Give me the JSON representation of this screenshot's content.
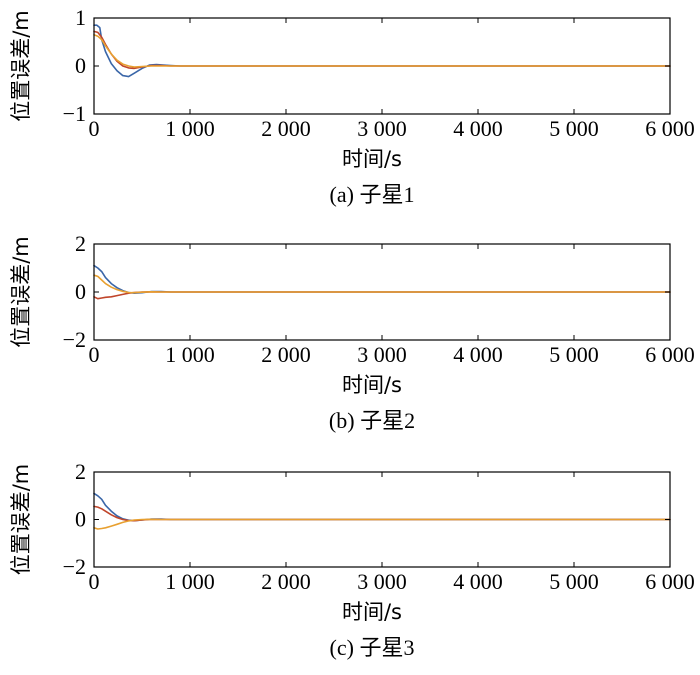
{
  "chart_data": [
    {
      "type": "line",
      "caption": "(a) 子星1",
      "xlabel": "时间/s",
      "ylabel": "位置误差/m",
      "xlim": [
        0,
        6000
      ],
      "ylim": [
        -1,
        1
      ],
      "xticks": [
        0,
        1000,
        2000,
        3000,
        4000,
        5000,
        6000
      ],
      "xtick_labels": [
        "0",
        "1 000",
        "2 000",
        "3 000",
        "4 000",
        "5 000",
        "6 000"
      ],
      "yticks": [
        -1,
        0,
        1
      ],
      "ytick_labels": [
        "−1",
        "0",
        "1"
      ],
      "series": [
        {
          "color": "#3a66a8",
          "x": [
            0,
            30,
            60,
            80,
            120,
            180,
            240,
            300,
            360,
            420,
            500,
            580,
            650,
            720,
            800,
            900,
            1000,
            6000
          ],
          "y": [
            0.85,
            0.85,
            0.8,
            0.55,
            0.3,
            0.05,
            -0.1,
            -0.2,
            -0.22,
            -0.15,
            -0.05,
            0.02,
            0.03,
            0.02,
            0.01,
            0.0,
            0.0,
            0.0
          ]
        },
        {
          "color": "#c0452a",
          "x": [
            0,
            40,
            80,
            120,
            180,
            240,
            300,
            360,
            420,
            500,
            600,
            700,
            800,
            1000,
            6000
          ],
          "y": [
            0.72,
            0.7,
            0.6,
            0.45,
            0.25,
            0.1,
            0.0,
            -0.04,
            -0.05,
            -0.02,
            0.01,
            0.01,
            0.0,
            0.0,
            0.0
          ]
        },
        {
          "color": "#e8a030",
          "x": [
            0,
            40,
            80,
            120,
            180,
            240,
            300,
            360,
            420,
            500,
            600,
            700,
            800,
            1000,
            6000
          ],
          "y": [
            0.65,
            0.62,
            0.55,
            0.42,
            0.25,
            0.12,
            0.04,
            0.0,
            -0.02,
            -0.01,
            0.0,
            0.0,
            0.0,
            0.0,
            0.0
          ]
        }
      ]
    },
    {
      "type": "line",
      "caption": "(b) 子星2",
      "xlabel": "时间/s",
      "ylabel": "位置误差/m",
      "xlim": [
        0,
        6000
      ],
      "ylim": [
        -2,
        2
      ],
      "xticks": [
        0,
        1000,
        2000,
        3000,
        4000,
        5000,
        6000
      ],
      "xtick_labels": [
        "0",
        "1 000",
        "2 000",
        "3 000",
        "4 000",
        "5 000",
        "6 000"
      ],
      "yticks": [
        -2,
        0,
        2
      ],
      "ytick_labels": [
        "−2",
        "0",
        "2"
      ],
      "series": [
        {
          "color": "#3a66a8",
          "x": [
            0,
            40,
            80,
            120,
            180,
            240,
            300,
            360,
            420,
            500,
            600,
            700,
            800,
            900,
            6000
          ],
          "y": [
            1.1,
            1.0,
            0.85,
            0.6,
            0.35,
            0.18,
            0.06,
            -0.02,
            -0.05,
            -0.03,
            0.02,
            0.02,
            0.0,
            0.0,
            0.0
          ]
        },
        {
          "color": "#c0452a",
          "x": [
            0,
            40,
            80,
            120,
            180,
            240,
            300,
            360,
            420,
            500,
            600,
            700,
            800,
            900,
            6000
          ],
          "y": [
            -0.2,
            -0.28,
            -0.25,
            -0.22,
            -0.2,
            -0.15,
            -0.1,
            -0.05,
            -0.02,
            0.0,
            0.01,
            0.0,
            0.0,
            0.0,
            0.0
          ]
        },
        {
          "color": "#e8a030",
          "x": [
            0,
            40,
            80,
            120,
            180,
            240,
            300,
            360,
            420,
            500,
            600,
            700,
            800,
            900,
            6000
          ],
          "y": [
            0.7,
            0.65,
            0.5,
            0.35,
            0.2,
            0.1,
            0.03,
            -0.02,
            -0.03,
            -0.01,
            0.01,
            0.0,
            0.0,
            0.0,
            0.0
          ]
        }
      ]
    },
    {
      "type": "line",
      "caption": "(c) 子星3",
      "xlabel": "时间/s",
      "ylabel": "位置误差/m",
      "xlim": [
        0,
        6000
      ],
      "ylim": [
        -2,
        2
      ],
      "xticks": [
        0,
        1000,
        2000,
        3000,
        4000,
        5000,
        6000
      ],
      "xtick_labels": [
        "0",
        "1 000",
        "2 000",
        "3 000",
        "4 000",
        "5 000",
        "6 000"
      ],
      "yticks": [
        -2,
        0,
        2
      ],
      "ytick_labels": [
        "−2",
        "0",
        "2"
      ],
      "series": [
        {
          "color": "#3a66a8",
          "x": [
            0,
            40,
            80,
            120,
            180,
            240,
            300,
            360,
            420,
            500,
            600,
            700,
            800,
            900,
            6000
          ],
          "y": [
            1.1,
            1.0,
            0.85,
            0.6,
            0.35,
            0.15,
            0.03,
            -0.03,
            -0.05,
            -0.02,
            0.02,
            0.02,
            0.0,
            0.0,
            0.0
          ]
        },
        {
          "color": "#c0452a",
          "x": [
            0,
            40,
            80,
            120,
            180,
            240,
            300,
            360,
            420,
            500,
            600,
            700,
            800,
            900,
            6000
          ],
          "y": [
            0.55,
            0.52,
            0.45,
            0.35,
            0.2,
            0.08,
            0.0,
            -0.04,
            -0.05,
            -0.02,
            0.01,
            0.0,
            0.0,
            0.0,
            0.0
          ]
        },
        {
          "color": "#e8a030",
          "x": [
            0,
            40,
            80,
            120,
            180,
            240,
            300,
            360,
            420,
            500,
            600,
            700,
            800,
            900,
            6000
          ],
          "y": [
            -0.35,
            -0.4,
            -0.38,
            -0.35,
            -0.28,
            -0.2,
            -0.12,
            -0.06,
            -0.02,
            0.0,
            0.01,
            0.0,
            0.0,
            0.0,
            0.0
          ]
        }
      ]
    }
  ]
}
